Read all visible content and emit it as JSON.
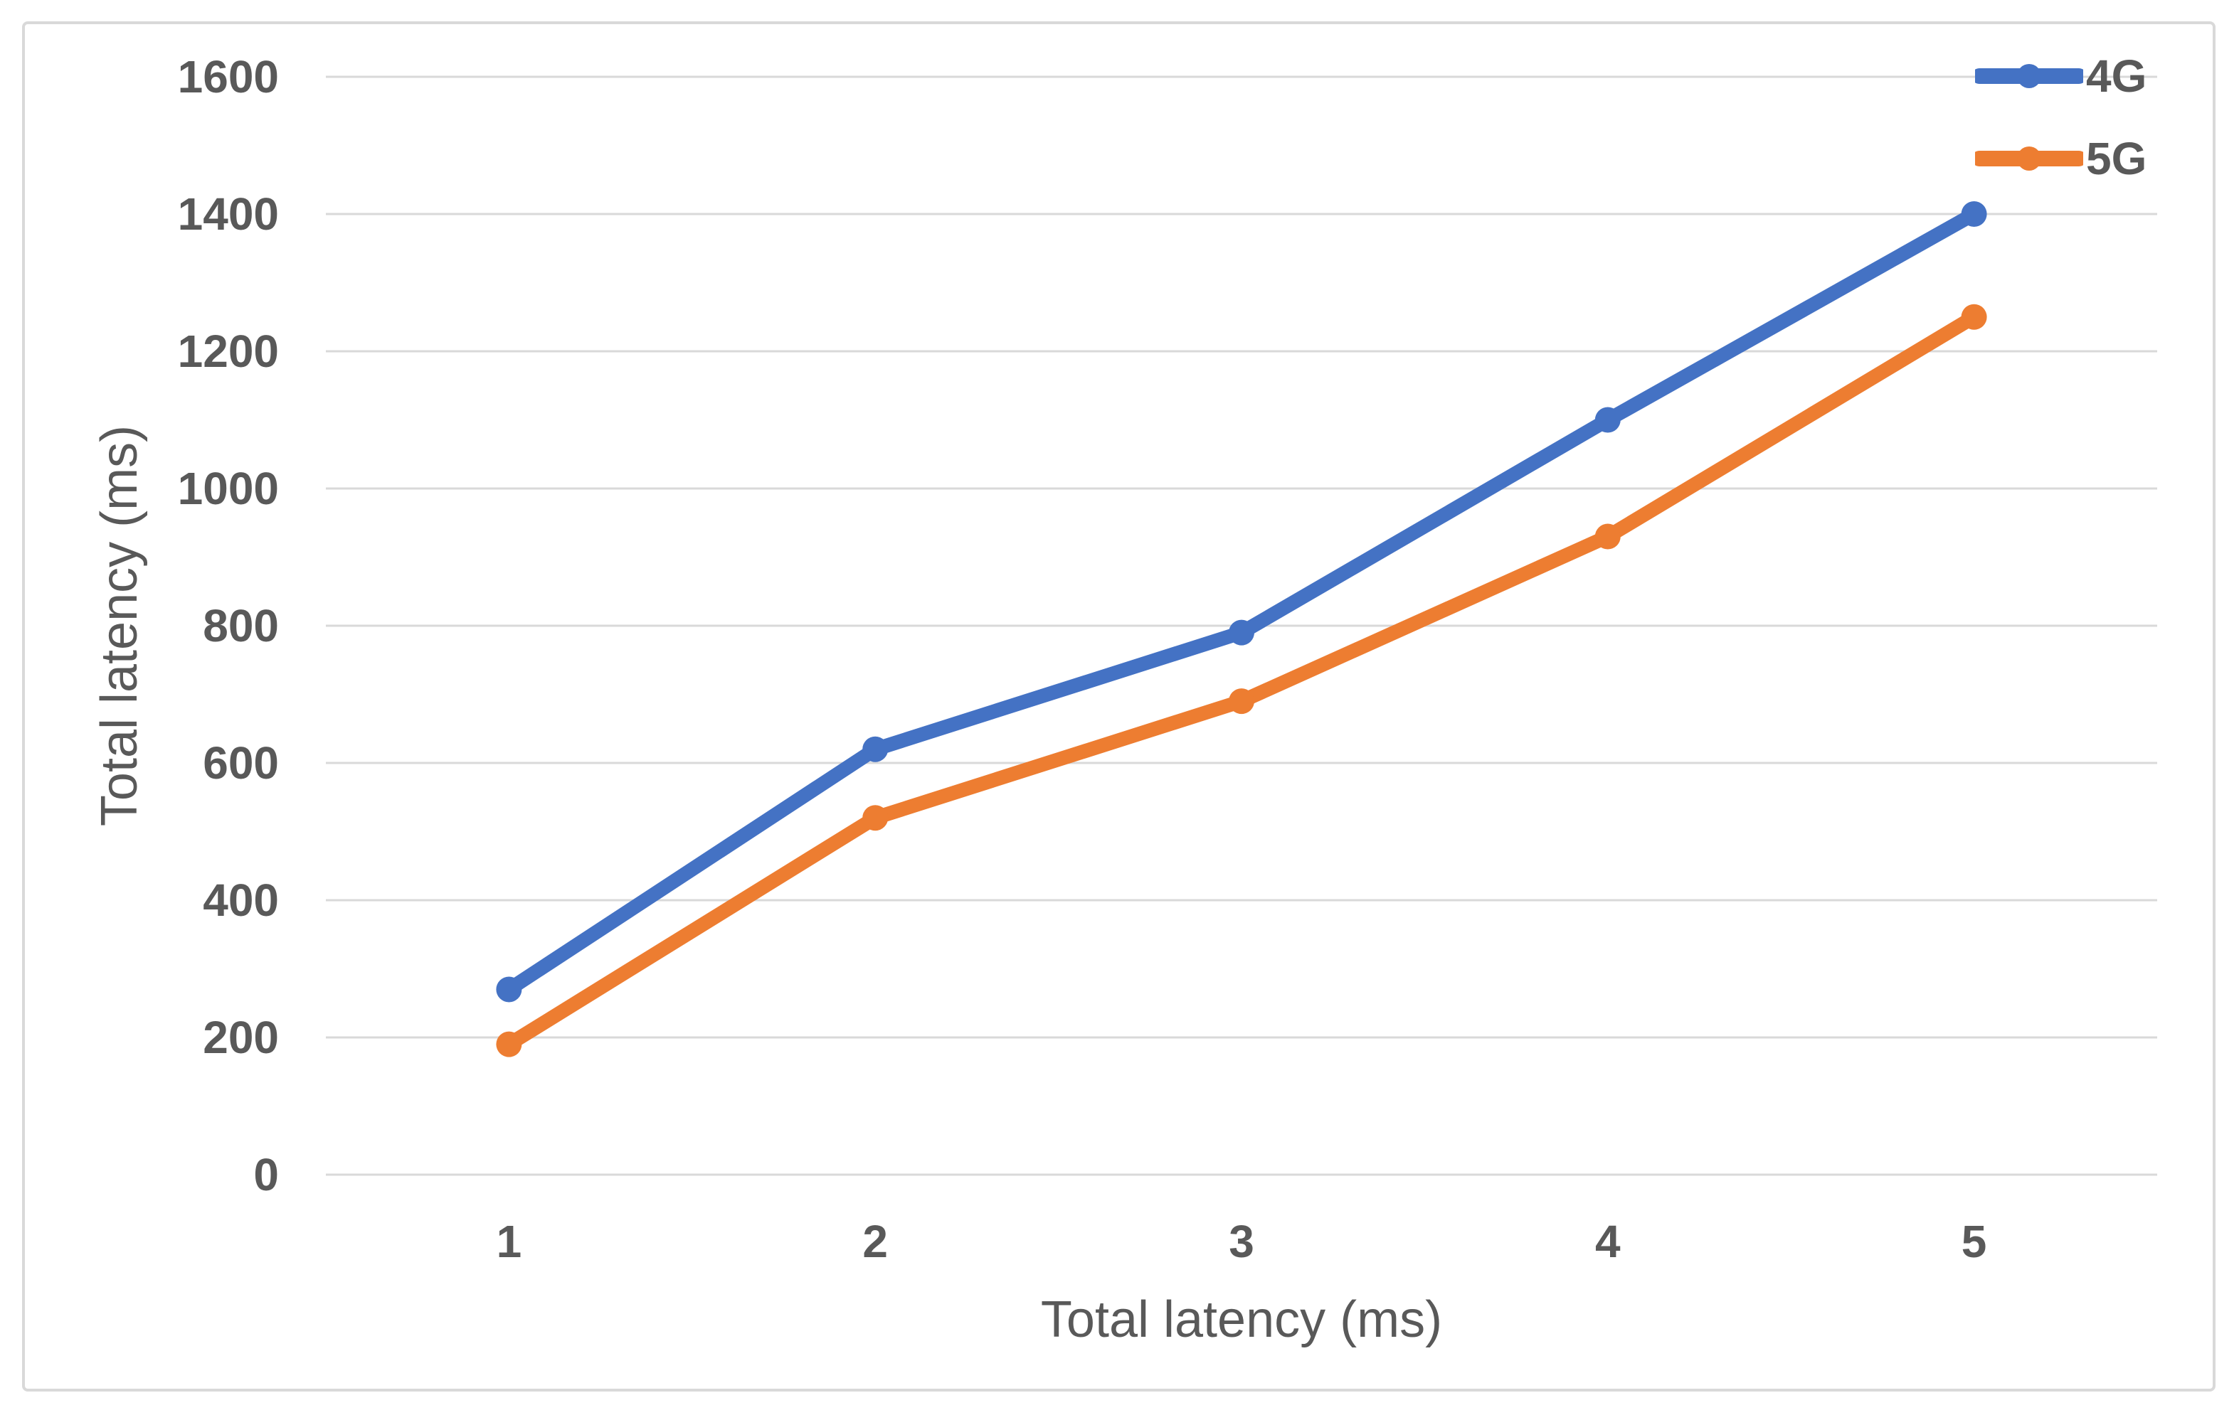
{
  "chart_data": {
    "type": "line",
    "title": "",
    "categories": [
      "1",
      "2",
      "3",
      "4",
      "5"
    ],
    "series": [
      {
        "name": "4G",
        "color": "#4472C4",
        "values": [
          270,
          620,
          790,
          1100,
          1400
        ]
      },
      {
        "name": "5G",
        "color": "#ED7D31",
        "values": [
          190,
          520,
          690,
          930,
          1250
        ]
      }
    ],
    "xlabel": "Total latency (ms)",
    "ylabel": "Total latency (ms)",
    "ylim": [
      0,
      1600
    ],
    "yticks": [
      0,
      200,
      400,
      600,
      800,
      1000,
      1200,
      1400,
      1600
    ],
    "grid": true,
    "legend_position": "top-right",
    "colors": {
      "series_4g": "#4472C4",
      "series_5g": "#ED7D31",
      "gridline": "#D9D9D9",
      "frame_border": "#D9D9D9",
      "axis_text": "#595959"
    }
  }
}
